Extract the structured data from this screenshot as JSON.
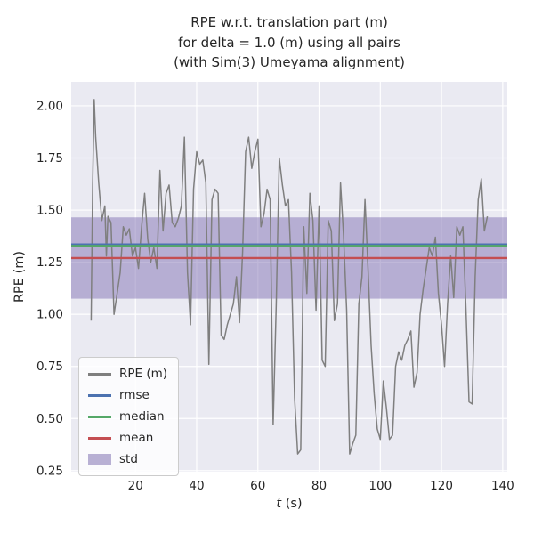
{
  "title": "RPE w.r.t. translation part (m)\nfor delta = 1.0 (m) using all pairs\n(with Sim(3) Umeyama alignment)",
  "axes": {
    "xlabel_var": "t",
    "xlabel_unit": " (s)",
    "ylabel": "RPE (m)"
  },
  "colors": {
    "axes_bg": "#eaeaf2",
    "grid": "#ffffff",
    "text": "#262626",
    "series": "#7f7f7f",
    "rmse": "#4c72b0",
    "median": "#55a868",
    "mean": "#c44e52",
    "std_band": "#8172b3"
  },
  "legend": {
    "items": [
      {
        "label": "RPE (m)",
        "type": "line",
        "color": "#7f7f7f"
      },
      {
        "label": "rmse",
        "type": "line",
        "color": "#4c72b0"
      },
      {
        "label": "median",
        "type": "line",
        "color": "#55a868"
      },
      {
        "label": "mean",
        "type": "line",
        "color": "#c44e52"
      },
      {
        "label": "std",
        "type": "patch",
        "color": "#8172b3"
      }
    ]
  },
  "chart_data": {
    "type": "line",
    "title": "RPE w.r.t. translation part (m) for delta = 1.0 (m) using all pairs (with Sim(3) Umeyama alignment)",
    "xlabel": "t (s)",
    "ylabel": "RPE (m)",
    "xlim": [
      -1,
      141.5
    ],
    "ylim": [
      0.245,
      2.115
    ],
    "x_ticks": [
      20,
      40,
      60,
      80,
      100,
      120,
      140
    ],
    "y_ticks": [
      0.25,
      0.5,
      0.75,
      1.0,
      1.25,
      1.5,
      1.75,
      2.0
    ],
    "y_tick_labels": [
      "0.25",
      "0.50",
      "0.75",
      "1.00",
      "1.25",
      "1.50",
      "1.75",
      "2.00"
    ],
    "grid": true,
    "legend_position": "lower left",
    "stats": {
      "rmse": 1.335,
      "median": 1.328,
      "mean": 1.27,
      "std_lower": 1.075,
      "std_upper": 1.465
    },
    "series": [
      {
        "name": "RPE (m)",
        "x": [
          5.5,
          6,
          6.5,
          7,
          8,
          9,
          10,
          10.5,
          11,
          12,
          13,
          14,
          15,
          16,
          17,
          18,
          19,
          20,
          21,
          22,
          23,
          24,
          25,
          26,
          27,
          28,
          29,
          30,
          31,
          32,
          33,
          34,
          35,
          36,
          37,
          38,
          39,
          40,
          41,
          42,
          43,
          44,
          45,
          46,
          47,
          48,
          49,
          50,
          51,
          52,
          53,
          54,
          55,
          56,
          57,
          58,
          59,
          60,
          61,
          62,
          63,
          64,
          65,
          66,
          67,
          68,
          69,
          70,
          71,
          72,
          73,
          74,
          75,
          76,
          77,
          78,
          79,
          80,
          81,
          82,
          83,
          84,
          85,
          86,
          87,
          88,
          89,
          90,
          91,
          92,
          93,
          94,
          95,
          96,
          97,
          98,
          99,
          100,
          101,
          102,
          103,
          104,
          105,
          106,
          107,
          108,
          109,
          110,
          111,
          112,
          113,
          114,
          115,
          116,
          117,
          118,
          119,
          120,
          121,
          122,
          123,
          124,
          125,
          126,
          127,
          128,
          129,
          130,
          131,
          132,
          133,
          134,
          135
        ],
        "y": [
          0.97,
          1.62,
          2.03,
          1.85,
          1.63,
          1.45,
          1.52,
          1.28,
          1.47,
          1.44,
          1.0,
          1.1,
          1.2,
          1.42,
          1.38,
          1.41,
          1.28,
          1.32,
          1.22,
          1.42,
          1.58,
          1.36,
          1.25,
          1.32,
          1.22,
          1.69,
          1.4,
          1.58,
          1.62,
          1.44,
          1.42,
          1.46,
          1.52,
          1.85,
          1.2,
          0.95,
          1.6,
          1.78,
          1.72,
          1.74,
          1.63,
          0.76,
          1.55,
          1.6,
          1.58,
          0.9,
          0.88,
          0.95,
          1.0,
          1.05,
          1.18,
          0.96,
          1.3,
          1.78,
          1.85,
          1.7,
          1.78,
          1.84,
          1.42,
          1.48,
          1.6,
          1.55,
          0.47,
          1.05,
          1.75,
          1.62,
          1.52,
          1.55,
          1.2,
          0.6,
          0.33,
          0.35,
          1.42,
          1.1,
          1.58,
          1.45,
          1.02,
          1.52,
          0.78,
          0.75,
          1.45,
          1.4,
          0.97,
          1.05,
          1.63,
          1.38,
          1.02,
          0.33,
          0.38,
          0.42,
          1.05,
          1.18,
          1.55,
          1.22,
          0.85,
          0.62,
          0.45,
          0.4,
          0.68,
          0.55,
          0.4,
          0.42,
          0.75,
          0.82,
          0.78,
          0.85,
          0.88,
          0.92,
          0.65,
          0.72,
          1.0,
          1.12,
          1.22,
          1.32,
          1.28,
          1.37,
          1.1,
          0.95,
          0.75,
          1.05,
          1.28,
          1.08,
          1.42,
          1.38,
          1.42,
          1.02,
          0.58,
          0.57,
          1.18,
          1.55,
          1.65,
          1.4,
          1.47
        ]
      }
    ]
  }
}
